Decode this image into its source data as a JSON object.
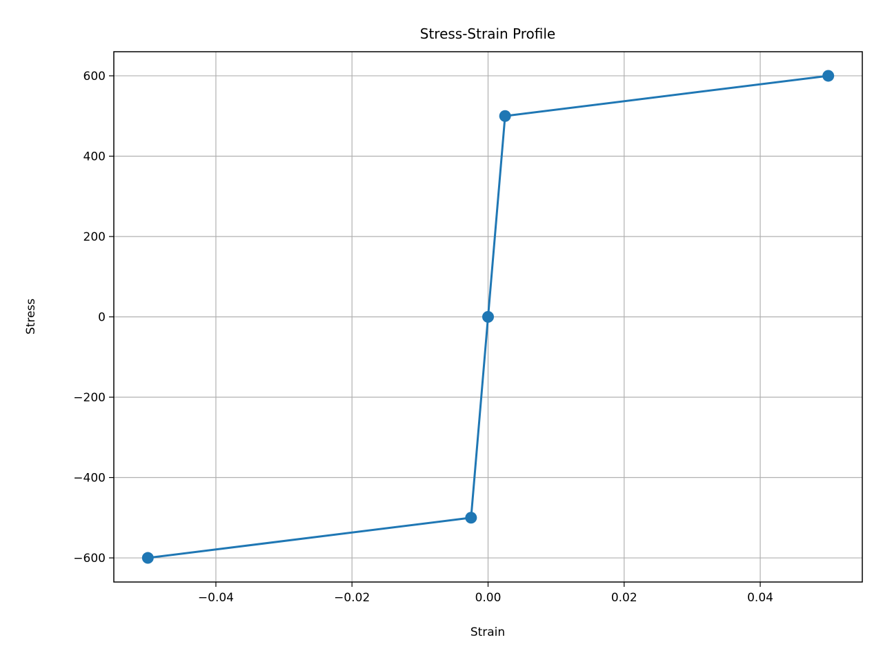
{
  "chart_data": {
    "type": "line",
    "title": "Stress-Strain Profile",
    "xlabel": "Strain",
    "ylabel": "Stress",
    "xlim": [
      -0.055,
      0.055
    ],
    "ylim": [
      -660,
      660
    ],
    "grid": true,
    "xticks": [
      -0.04,
      -0.02,
      0.0,
      0.02,
      0.04
    ],
    "xtick_labels": [
      "−0.04",
      "−0.02",
      "0.00",
      "0.02",
      "0.04"
    ],
    "yticks": [
      600,
      400,
      200,
      0,
      -200,
      -400,
      -600
    ],
    "ytick_labels": [
      "600",
      "400",
      "200",
      "0",
      "−200",
      "−400",
      "−600"
    ],
    "series": [
      {
        "color": "#1f77b4",
        "marker": "circle",
        "x": [
          -0.05,
          -0.0025,
          0.0,
          0.0025,
          0.05
        ],
        "y": [
          -600,
          -500,
          0,
          500,
          600
        ]
      }
    ]
  }
}
